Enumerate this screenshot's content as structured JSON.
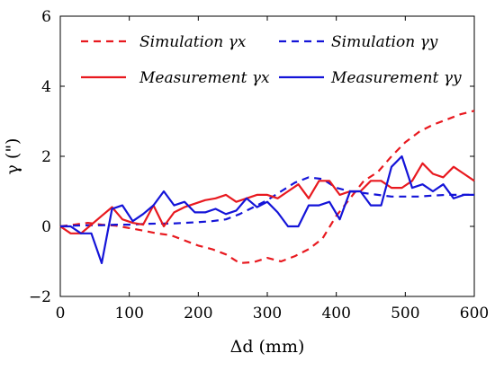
{
  "chart_data": {
    "type": "line",
    "xlabel": "Δd (mm)",
    "ylabel": "γ (\")",
    "xlim": [
      0,
      600
    ],
    "ylim": [
      -2,
      6
    ],
    "xticks": [
      0,
      100,
      200,
      300,
      400,
      500,
      600
    ],
    "yticks": [
      -2,
      0,
      2,
      4,
      6
    ],
    "grid": false,
    "legend": {
      "placement": "top",
      "columns": 2
    },
    "series": [
      {
        "name": "Simulation γx",
        "color": "#e8191f",
        "style": "dashed",
        "x": [
          0,
          20,
          40,
          60,
          80,
          100,
          120,
          140,
          160,
          180,
          200,
          220,
          240,
          260,
          280,
          300,
          320,
          340,
          360,
          380,
          400,
          420,
          440,
          460,
          480,
          500,
          520,
          540,
          560,
          580,
          600
        ],
        "y": [
          0.0,
          0.05,
          0.1,
          0.05,
          0.02,
          -0.05,
          -0.12,
          -0.2,
          -0.25,
          -0.4,
          -0.55,
          -0.65,
          -0.8,
          -1.05,
          -1.02,
          -0.9,
          -1.0,
          -0.85,
          -0.65,
          -0.35,
          0.3,
          0.8,
          1.3,
          1.55,
          2.0,
          2.4,
          2.7,
          2.9,
          3.05,
          3.2,
          3.3
        ]
      },
      {
        "name": "Simulation γy",
        "color": "#1414d8",
        "style": "dashed",
        "x": [
          0,
          20,
          40,
          60,
          80,
          100,
          120,
          140,
          160,
          180,
          200,
          220,
          240,
          260,
          280,
          300,
          320,
          340,
          360,
          380,
          400,
          420,
          440,
          460,
          480,
          500,
          520,
          540,
          560,
          580,
          600
        ],
        "y": [
          0.0,
          0.02,
          0.03,
          0.03,
          0.05,
          0.05,
          0.07,
          0.08,
          0.08,
          0.1,
          0.12,
          0.15,
          0.2,
          0.35,
          0.55,
          0.75,
          1.0,
          1.25,
          1.4,
          1.35,
          1.1,
          1.0,
          0.95,
          0.9,
          0.85,
          0.85,
          0.85,
          0.88,
          0.9,
          0.9,
          0.9
        ]
      },
      {
        "name": "Measurement γx",
        "color": "#e8191f",
        "style": "solid",
        "x": [
          0,
          15,
          30,
          45,
          60,
          75,
          90,
          105,
          120,
          135,
          150,
          165,
          180,
          195,
          210,
          225,
          240,
          255,
          270,
          285,
          300,
          315,
          330,
          345,
          360,
          375,
          390,
          405,
          420,
          435,
          450,
          465,
          480,
          495,
          510,
          525,
          540,
          555,
          570,
          585,
          600
        ],
        "y": [
          0.0,
          -0.2,
          -0.2,
          0.05,
          0.3,
          0.55,
          0.2,
          0.1,
          0.05,
          0.6,
          0.0,
          0.4,
          0.55,
          0.65,
          0.75,
          0.8,
          0.9,
          0.7,
          0.8,
          0.9,
          0.9,
          0.8,
          1.0,
          1.2,
          0.8,
          1.3,
          1.3,
          0.9,
          1.0,
          1.0,
          1.3,
          1.3,
          1.1,
          1.1,
          1.3,
          1.8,
          1.5,
          1.4,
          1.7,
          1.5,
          1.3
        ]
      },
      {
        "name": "Measurement γy",
        "color": "#1414d8",
        "style": "solid",
        "x": [
          0,
          15,
          30,
          45,
          60,
          75,
          90,
          105,
          120,
          135,
          150,
          165,
          180,
          195,
          210,
          225,
          240,
          255,
          270,
          285,
          300,
          315,
          330,
          345,
          360,
          375,
          390,
          405,
          420,
          435,
          450,
          465,
          480,
          495,
          510,
          525,
          540,
          555,
          570,
          585,
          600
        ],
        "y": [
          0.0,
          0.0,
          -0.2,
          -0.2,
          -1.05,
          0.5,
          0.6,
          0.15,
          0.35,
          0.6,
          1.0,
          0.6,
          0.7,
          0.4,
          0.4,
          0.5,
          0.35,
          0.45,
          0.8,
          0.55,
          0.7,
          0.4,
          0.0,
          0.0,
          0.6,
          0.6,
          0.7,
          0.2,
          1.0,
          1.0,
          0.6,
          0.6,
          1.7,
          2.0,
          1.1,
          1.2,
          1.0,
          1.2,
          0.8,
          0.9,
          0.9
        ]
      }
    ]
  }
}
